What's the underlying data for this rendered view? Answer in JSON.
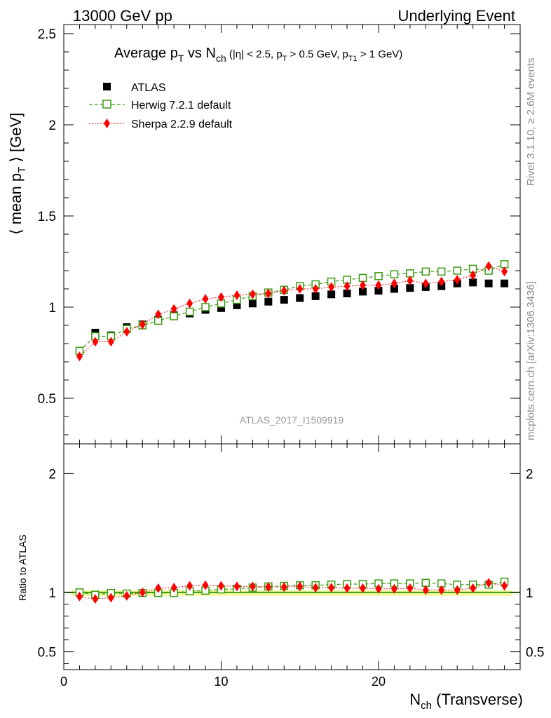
{
  "header": {
    "left": "13000 GeV pp",
    "right": "Underlying Event"
  },
  "side_labels": {
    "rivet": "Rivet 3.1.10, ≥ 2.6M events",
    "mcplots": "mcplots.cern.ch [arXiv:1306.3436]"
  },
  "chart_data": {
    "type": "scatter",
    "title": "Average pT vs Nch (|η| < 2.5, pT > 0.5 GeV, pT1 > 1 GeV)",
    "analysis_label": "ATLAS_2017_I1509919",
    "xlabel": "Nch (Transverse)",
    "ylabel": "⟨ mean pT ⟩ [GeV]",
    "ratio_ylabel": "Ratio to ATLAS",
    "xlim": [
      0,
      29
    ],
    "ylim": [
      0.25,
      2.55
    ],
    "ratio_ylim": [
      0.35,
      2.25
    ],
    "x_ticks": [
      "0",
      "10",
      "20"
    ],
    "y_ticks": [
      "0.5",
      "1",
      "1.5",
      "2",
      "2.5"
    ],
    "ratio_y_ticks": [
      "0.5",
      "1",
      "2"
    ],
    "legend_position": "top-left",
    "x": [
      1,
      2,
      3,
      4,
      5,
      6,
      7,
      8,
      9,
      10,
      11,
      12,
      13,
      14,
      15,
      16,
      17,
      18,
      19,
      20,
      21,
      22,
      23,
      24,
      25,
      26,
      27,
      28
    ],
    "series": [
      {
        "name": "ATLAS",
        "color": "#000000",
        "marker": "square-filled",
        "values": [
          0.76,
          0.86,
          0.845,
          0.89,
          0.905,
          0.93,
          0.955,
          0.965,
          0.985,
          0.995,
          1.01,
          1.02,
          1.03,
          1.04,
          1.05,
          1.06,
          1.07,
          1.075,
          1.085,
          1.09,
          1.1,
          1.105,
          1.11,
          1.115,
          1.13,
          1.135,
          1.13,
          1.13
        ]
      },
      {
        "name": "Herwig 7.2.1 default",
        "color": "#3a9a10",
        "marker": "square-open",
        "line": "dashed",
        "values": [
          0.76,
          0.84,
          0.84,
          0.88,
          0.9,
          0.925,
          0.95,
          0.975,
          1.0,
          1.02,
          1.04,
          1.06,
          1.08,
          1.095,
          1.115,
          1.125,
          1.14,
          1.15,
          1.16,
          1.17,
          1.18,
          1.185,
          1.195,
          1.195,
          1.2,
          1.21,
          1.2,
          1.235
        ],
        "ratio": [
          1.0,
          0.98,
          0.995,
          0.99,
          0.995,
          0.995,
          0.995,
          1.01,
          1.015,
          1.025,
          1.03,
          1.04,
          1.05,
          1.055,
          1.06,
          1.06,
          1.065,
          1.07,
          1.07,
          1.075,
          1.075,
          1.075,
          1.08,
          1.075,
          1.065,
          1.065,
          1.065,
          1.09
        ]
      },
      {
        "name": "Sherpa 2.2.9 default",
        "color": "#ff0000",
        "marker": "diamond-filled",
        "line": "dotted",
        "values": [
          0.73,
          0.81,
          0.81,
          0.865,
          0.905,
          0.96,
          0.99,
          1.02,
          1.045,
          1.055,
          1.065,
          1.07,
          1.075,
          1.09,
          1.1,
          1.1,
          1.11,
          1.115,
          1.12,
          1.12,
          1.13,
          1.145,
          1.13,
          1.14,
          1.15,
          1.175,
          1.225,
          1.195
        ],
        "ratio": [
          0.965,
          0.945,
          0.955,
          0.97,
          1.0,
          1.035,
          1.04,
          1.055,
          1.06,
          1.055,
          1.05,
          1.05,
          1.045,
          1.045,
          1.05,
          1.04,
          1.04,
          1.035,
          1.035,
          1.03,
          1.03,
          1.035,
          1.02,
          1.02,
          1.02,
          1.035,
          1.08,
          1.055
        ]
      }
    ]
  }
}
